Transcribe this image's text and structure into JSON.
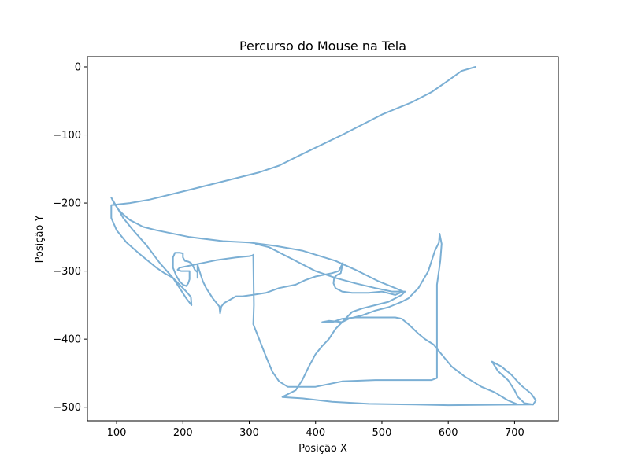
{
  "chart_data": {
    "type": "line",
    "title": "Percurso do Mouse na Tela",
    "xlabel": "Posição X",
    "ylabel": "Posição Y",
    "xlim": [
      56,
      766
    ],
    "ylim": [
      -520,
      15
    ],
    "x_ticks": [
      100,
      200,
      300,
      400,
      500,
      600,
      700
    ],
    "y_ticks": [
      0,
      -100,
      -200,
      -300,
      -400,
      -500
    ],
    "grid": false,
    "legend": "none",
    "line_color": "#7bafd4",
    "series": [
      {
        "points": [
          [
            641,
            0
          ],
          [
            620,
            -6
          ],
          [
            600,
            -20
          ],
          [
            575,
            -37
          ],
          [
            545,
            -52
          ],
          [
            500,
            -70
          ],
          [
            440,
            -100
          ],
          [
            380,
            -128
          ],
          [
            345,
            -145
          ],
          [
            315,
            -155
          ],
          [
            200,
            -183
          ],
          [
            150,
            -195
          ],
          [
            120,
            -200
          ],
          [
            92,
            -203
          ],
          [
            92,
            -222
          ],
          [
            100,
            -240
          ],
          [
            115,
            -258
          ],
          [
            135,
            -275
          ],
          [
            160,
            -295
          ],
          [
            172,
            -303
          ],
          [
            185,
            -310
          ],
          [
            195,
            -325
          ],
          [
            205,
            -340
          ],
          [
            213,
            -350
          ],
          [
            212,
            -338
          ],
          [
            205,
            -330
          ],
          [
            195,
            -320
          ],
          [
            185,
            -310
          ],
          [
            165,
            -288
          ],
          [
            145,
            -262
          ],
          [
            125,
            -240
          ],
          [
            110,
            -222
          ],
          [
            92,
            -192
          ],
          [
            96,
            -200
          ],
          [
            103,
            -210
          ],
          [
            108,
            -215
          ],
          [
            120,
            -225
          ],
          [
            140,
            -235
          ],
          [
            160,
            -240
          ],
          [
            210,
            -250
          ],
          [
            260,
            -256
          ],
          [
            300,
            -258
          ],
          [
            340,
            -263
          ],
          [
            380,
            -270
          ],
          [
            430,
            -285
          ],
          [
            460,
            -298
          ],
          [
            495,
            -315
          ],
          [
            520,
            -325
          ],
          [
            532,
            -330
          ],
          [
            520,
            -335
          ],
          [
            500,
            -330
          ],
          [
            480,
            -332
          ],
          [
            455,
            -332
          ],
          [
            440,
            -330
          ],
          [
            430,
            -325
          ],
          [
            427,
            -318
          ],
          [
            428,
            -310
          ],
          [
            432,
            -306
          ],
          [
            438,
            -303
          ],
          [
            441,
            -288
          ],
          [
            435,
            -300
          ],
          [
            425,
            -303
          ],
          [
            400,
            -308
          ],
          [
            385,
            -313
          ],
          [
            370,
            -320
          ],
          [
            345,
            -325
          ],
          [
            325,
            -332
          ],
          [
            305,
            -335
          ],
          [
            290,
            -337
          ],
          [
            280,
            -337
          ],
          [
            271,
            -342
          ],
          [
            262,
            -347
          ],
          [
            258,
            -352
          ],
          [
            256,
            -362
          ],
          [
            255,
            -352
          ],
          [
            245,
            -340
          ],
          [
            235,
            -325
          ],
          [
            230,
            -315
          ],
          [
            225,
            -300
          ],
          [
            222,
            -290
          ],
          [
            222,
            -310
          ],
          [
            222,
            -302
          ],
          [
            218,
            -298
          ],
          [
            215,
            -292
          ],
          [
            212,
            -288
          ],
          [
            208,
            -286
          ],
          [
            203,
            -285
          ],
          [
            200,
            -280
          ],
          [
            200,
            -274
          ],
          [
            195,
            -273
          ],
          [
            188,
            -273
          ],
          [
            185,
            -280
          ],
          [
            185,
            -295
          ],
          [
            190,
            -307
          ],
          [
            195,
            -315
          ],
          [
            200,
            -320
          ],
          [
            205,
            -322
          ],
          [
            208,
            -318
          ],
          [
            210,
            -312
          ],
          [
            210,
            -300
          ],
          [
            203,
            -300
          ],
          [
            197,
            -300
          ],
          [
            192,
            -298
          ],
          [
            195,
            -295
          ],
          [
            220,
            -290
          ],
          [
            250,
            -284
          ],
          [
            280,
            -280
          ],
          [
            300,
            -278
          ],
          [
            305,
            -277
          ],
          [
            306,
            -276
          ],
          [
            306,
            -277
          ],
          [
            307,
            -350
          ],
          [
            306,
            -378
          ],
          [
            315,
            -400
          ],
          [
            325,
            -425
          ],
          [
            335,
            -448
          ],
          [
            345,
            -462
          ],
          [
            358,
            -470
          ],
          [
            400,
            -470
          ],
          [
            440,
            -462
          ],
          [
            490,
            -460
          ],
          [
            575,
            -460
          ],
          [
            583,
            -457
          ],
          [
            583,
            -320
          ],
          [
            588,
            -285
          ],
          [
            590,
            -260
          ],
          [
            587,
            -245
          ],
          [
            586,
            -258
          ],
          [
            580,
            -270
          ],
          [
            570,
            -300
          ],
          [
            555,
            -325
          ],
          [
            540,
            -340
          ],
          [
            530,
            -345
          ],
          [
            510,
            -353
          ],
          [
            490,
            -358
          ],
          [
            470,
            -365
          ],
          [
            450,
            -370
          ],
          [
            440,
            -375
          ],
          [
            420,
            -373
          ],
          [
            410,
            -375
          ],
          [
            425,
            -375
          ],
          [
            440,
            -370
          ],
          [
            460,
            -368
          ],
          [
            480,
            -368
          ],
          [
            500,
            -368
          ],
          [
            520,
            -368
          ],
          [
            530,
            -370
          ],
          [
            540,
            -378
          ],
          [
            555,
            -392
          ],
          [
            565,
            -400
          ],
          [
            578,
            -408
          ],
          [
            588,
            -420
          ],
          [
            605,
            -440
          ],
          [
            625,
            -455
          ],
          [
            650,
            -470
          ],
          [
            670,
            -478
          ],
          [
            690,
            -490
          ],
          [
            705,
            -496
          ],
          [
            728,
            -496
          ],
          [
            600,
            -497
          ],
          [
            550,
            -496
          ],
          [
            480,
            -495
          ],
          [
            425,
            -492
          ],
          [
            380,
            -487
          ],
          [
            365,
            -486
          ],
          [
            350,
            -485
          ],
          [
            360,
            -480
          ],
          [
            370,
            -475
          ],
          [
            380,
            -460
          ],
          [
            390,
            -440
          ],
          [
            400,
            -422
          ],
          [
            410,
            -410
          ],
          [
            420,
            -400
          ],
          [
            430,
            -385
          ],
          [
            440,
            -375
          ],
          [
            445,
            -370
          ],
          [
            455,
            -360
          ],
          [
            470,
            -355
          ],
          [
            490,
            -350
          ],
          [
            510,
            -345
          ],
          [
            530,
            -335
          ],
          [
            535,
            -330
          ],
          [
            532,
            -330
          ],
          [
            515,
            -330
          ],
          [
            490,
            -325
          ],
          [
            460,
            -318
          ],
          [
            430,
            -310
          ],
          [
            400,
            -300
          ],
          [
            370,
            -285
          ],
          [
            330,
            -265
          ],
          [
            310,
            -260
          ]
        ]
      },
      {
        "points": [
          [
            666,
            -433
          ],
          [
            680,
            -440
          ],
          [
            695,
            -452
          ],
          [
            710,
            -468
          ],
          [
            725,
            -480
          ],
          [
            732,
            -490
          ],
          [
            728,
            -496
          ],
          [
            715,
            -494
          ],
          [
            705,
            -485
          ],
          [
            700,
            -475
          ],
          [
            690,
            -460
          ],
          [
            675,
            -447
          ],
          [
            666,
            -433
          ]
        ]
      }
    ]
  }
}
